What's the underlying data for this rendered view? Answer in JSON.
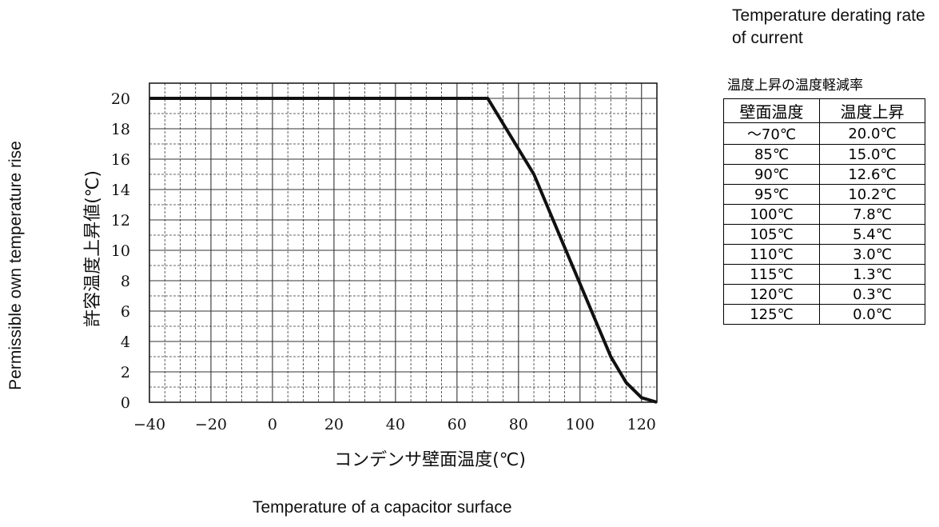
{
  "table": {
    "title_en": "Temperature derating rate of current",
    "caption_jp": "温度上昇の温度軽減率",
    "headers": [
      "壁面温度",
      "温度上昇"
    ],
    "rows": [
      [
        "～70℃",
        "20.0℃"
      ],
      [
        "85℃",
        "15.0℃"
      ],
      [
        "90℃",
        "12.6℃"
      ],
      [
        "95℃",
        "10.2℃"
      ],
      [
        "100℃",
        "7.8℃"
      ],
      [
        "105℃",
        "5.4℃"
      ],
      [
        "110℃",
        "3.0℃"
      ],
      [
        "115℃",
        "1.3℃"
      ],
      [
        "120℃",
        "0.3℃"
      ],
      [
        "125℃",
        "0.0℃"
      ]
    ]
  },
  "chart_data": {
    "type": "line",
    "xlabel": "コンデンサ壁面温度(℃)",
    "ylabel": "許容温度上昇値(℃)",
    "xlabel_en": "Temperature of a capacitor surface",
    "ylabel_en": "Permissible own temperature rise",
    "xlim": [
      -40,
      125
    ],
    "ylim": [
      0,
      21
    ],
    "x_ticks": [
      -40,
      -20,
      0,
      20,
      40,
      60,
      80,
      100,
      120
    ],
    "y_ticks": [
      0,
      2,
      4,
      6,
      8,
      10,
      12,
      14,
      16,
      18,
      20
    ],
    "grid": true,
    "series": [
      {
        "x": [
          -40,
          70,
          85,
          90,
          95,
          100,
          105,
          110,
          115,
          120,
          125
        ],
        "y": [
          20,
          20,
          15,
          12.6,
          10.2,
          7.8,
          5.4,
          3.0,
          1.3,
          0.3,
          0.0
        ]
      }
    ],
    "colors": {
      "line": "#111111",
      "grid": "#333333"
    }
  }
}
